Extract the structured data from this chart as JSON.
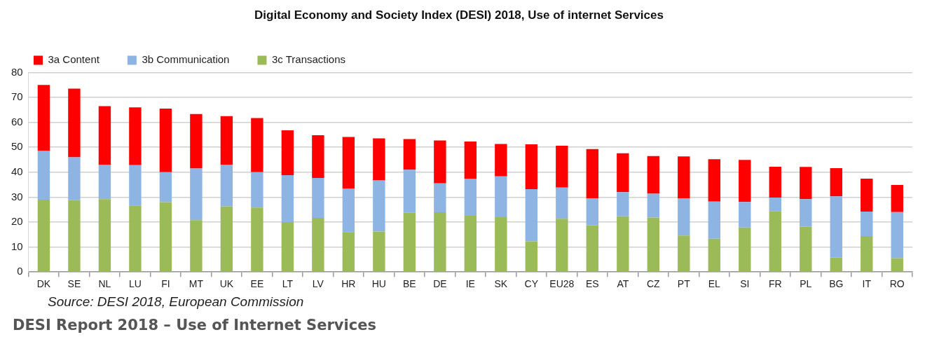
{
  "chart_data": {
    "type": "bar",
    "title": "Digital Economy and Society Index (DESI) 2018, Use of internet Services",
    "categories": [
      "DK",
      "SE",
      "NL",
      "LU",
      "FI",
      "MT",
      "UK",
      "EE",
      "LT",
      "LV",
      "HR",
      "HU",
      "BE",
      "DE",
      "IE",
      "SK",
      "CY",
      "EU28",
      "ES",
      "AT",
      "CZ",
      "PT",
      "EL",
      "SI",
      "FR",
      "PL",
      "BG",
      "IT",
      "RO"
    ],
    "stacked": true,
    "series": [
      {
        "name": "3c Transactions",
        "color": "#9bbb59",
        "values": [
          29,
          28.8,
          29.2,
          26.7,
          28,
          20.8,
          26.3,
          25.8,
          20,
          21.7,
          16,
          16.2,
          23.8,
          23.9,
          22.5,
          22,
          12.3,
          21.3,
          18.7,
          22.3,
          21.8,
          14.6,
          13.3,
          17.8,
          24.4,
          18.2,
          5.8,
          14.4,
          5.5
        ]
      },
      {
        "name": "3b Communication",
        "color": "#8db4e2",
        "values": [
          19.5,
          17.2,
          13.8,
          16.1,
          12,
          20.7,
          16.7,
          14.2,
          18.8,
          16,
          17.5,
          20.5,
          17.2,
          11.6,
          14.9,
          16.3,
          20.9,
          12.5,
          10.8,
          9.7,
          9.6,
          14.9,
          14.9,
          10.3,
          5.4,
          11,
          24.5,
          9.8,
          18.5
        ]
      },
      {
        "name": "3a Content",
        "color": "#ff0000",
        "values": [
          26.5,
          27.5,
          23.5,
          23.2,
          25.5,
          21.8,
          19.5,
          21.7,
          18,
          17.1,
          20.6,
          16.9,
          12.3,
          17.2,
          14.9,
          13,
          18,
          16.8,
          19.8,
          15.6,
          15.1,
          16.8,
          17,
          16.8,
          12.4,
          12.9,
          11.3,
          13.2,
          10.9
        ]
      }
    ],
    "ylim": [
      0,
      80
    ],
    "yticks": [
      0,
      10,
      20,
      30,
      40,
      50,
      60,
      70,
      80
    ],
    "grid": "y",
    "legend": "top left",
    "annotations": [
      "Source: DESI 2018, European Commission",
      "DESI Report 2018 – Use of Internet Services"
    ]
  }
}
